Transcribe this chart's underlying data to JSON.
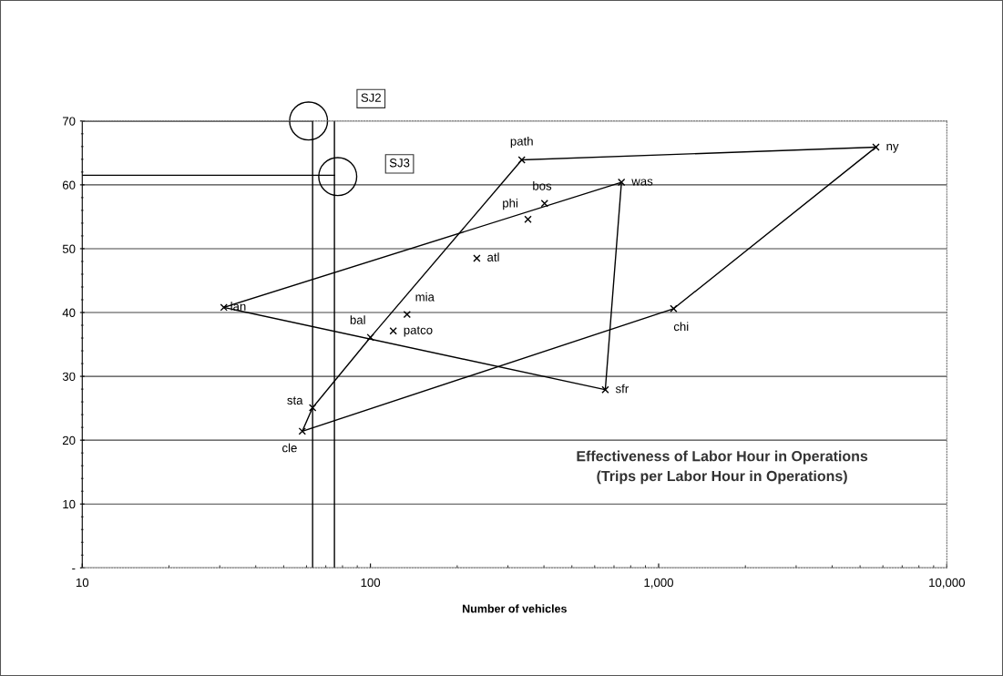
{
  "chart_data": {
    "type": "line",
    "title": "Effectiveness of Labor Hour in Operations\n(Trips per Labor Hour in Operations)",
    "xlabel": "Number of vehicles",
    "log": "x",
    "xlim": [
      10,
      10000
    ],
    "xticks": [
      10,
      {
        "value": 100,
        "label": "100"
      },
      {
        "value": 1000,
        "label": "1,000"
      },
      {
        "value": 10000,
        "label": "10,000"
      }
    ],
    "ylim": [
      0,
      70
    ],
    "yticks": [
      {
        "value": 0,
        "label": "-"
      },
      10,
      20,
      30,
      40,
      50,
      60,
      70
    ],
    "grid": "y",
    "legend": false,
    "marker": "none",
    "series": [
      {
        "color": "#000000",
        "x": [
          335,
          5675
        ],
        "values": [
          63.9,
          65.9
        ]
      },
      {
        "color": "#000000",
        "x": [
          1127,
          5675
        ],
        "values": [
          40.6,
          65.9
        ]
      },
      {
        "color": "#000000",
        "x": [
          58,
          1127
        ],
        "values": [
          21.4,
          40.6
        ]
      },
      {
        "color": "#000000",
        "x": [
          58,
          63
        ],
        "values": [
          21.4,
          25.1
        ]
      },
      {
        "color": "#000000",
        "x": [
          63,
          100
        ],
        "values": [
          25.1,
          36.1
        ]
      },
      {
        "color": "#000000",
        "x": [
          100,
          335
        ],
        "values": [
          36.1,
          63.9
        ]
      },
      {
        "color": "#000000",
        "x": [
          31,
          743
        ],
        "values": [
          40.8,
          60.4
        ]
      },
      {
        "color": "#000000",
        "x": [
          653,
          743
        ],
        "values": [
          27.9,
          60.4
        ]
      },
      {
        "color": "#000000",
        "x": [
          31,
          653
        ],
        "values": [
          40.8,
          27.9
        ]
      },
      {
        "type": "scatter",
        "marker": "cross",
        "color": "#000000",
        "x": [
          335,
          5675,
          1127,
          58,
          63,
          100,
          31,
          743,
          653,
          352,
          402,
          234,
          134,
          120
        ],
        "values": [
          63.9,
          65.9,
          40.6,
          21.4,
          25.1,
          36.1,
          40.8,
          60.4,
          27.9,
          54.6,
          57.1,
          48.5,
          39.7,
          37.1
        ]
      },
      {
        "color": "#000000",
        "x": [
          10,
          63
        ],
        "values": [
          70,
          70
        ]
      },
      {
        "color": "#000000",
        "x": [
          10,
          75
        ],
        "values": [
          61.5,
          61.5
        ]
      },
      {
        "type": "scatter",
        "color": "#000000",
        "marker": "circle",
        "x": [
          61,
          77
        ],
        "values": [
          70,
          61.3
        ]
      }
    ],
    "ref_lines": [
      {
        "axis": "x",
        "value": 63,
        "color": "#000000"
      },
      {
        "axis": "x",
        "value": 75,
        "color": "#000000"
      }
    ],
    "annotations": [
      {
        "text": "path",
        "x": 335,
        "y": 63.9
      },
      {
        "text": "ny",
        "x": 5675,
        "y": 65.9
      },
      {
        "text": "was",
        "x": 743,
        "y": 60.4
      },
      {
        "text": "bos",
        "x": 402,
        "y": 57.1
      },
      {
        "text": "phi",
        "x": 352,
        "y": 54.6
      },
      {
        "text": "atl",
        "x": 234,
        "y": 48.5
      },
      {
        "text": "mia",
        "x": 134,
        "y": 39.7
      },
      {
        "text": "bal",
        "x": 100,
        "y": 36.1
      },
      {
        "text": "patco",
        "x": 120,
        "y": 37.1
      },
      {
        "text": "lan",
        "x": 31,
        "y": 40.8
      },
      {
        "text": "sta",
        "x": 63,
        "y": 25.1
      },
      {
        "text": "cle",
        "x": 58,
        "y": 21.4
      },
      {
        "text": "chi",
        "x": 1127,
        "y": 40.6
      },
      {
        "text": "sfr",
        "x": 653,
        "y": 27.9
      },
      "SJ2",
      "SJ3"
    ]
  }
}
